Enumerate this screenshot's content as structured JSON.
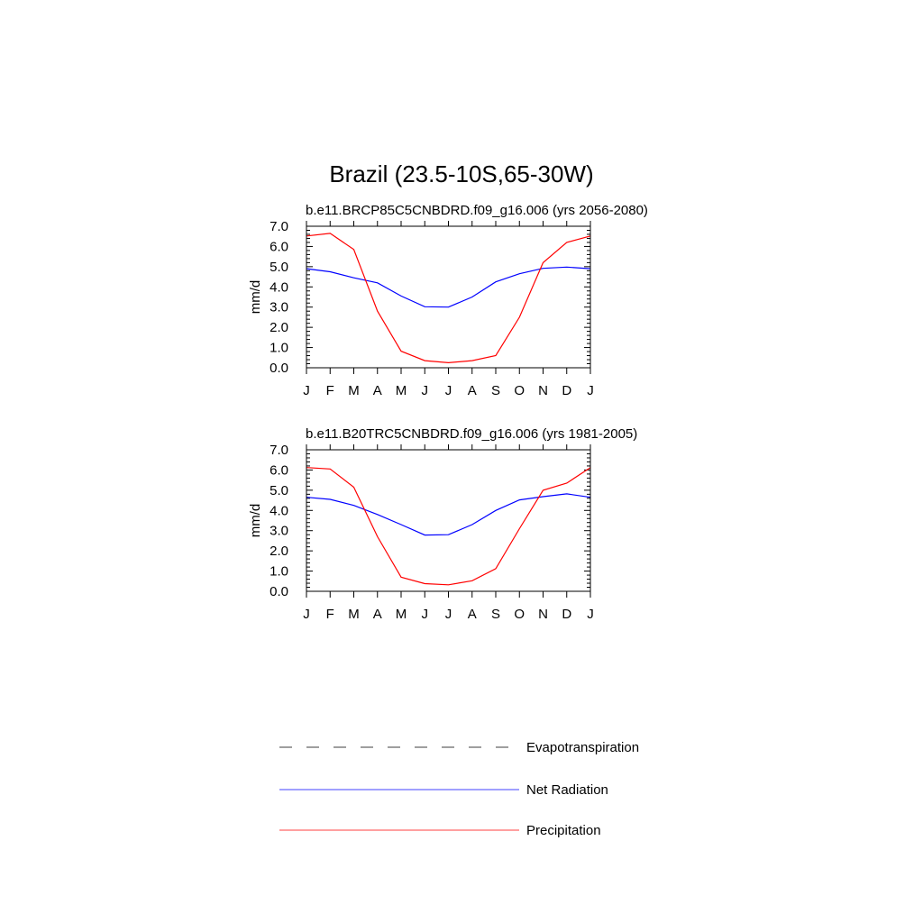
{
  "main_title": "Brazil (23.5-10S,65-30W)",
  "legend": [
    {
      "label": "Evapotranspiration",
      "color": "#000000",
      "style": "dashed"
    },
    {
      "label": "Net Radiation",
      "color": "#0000ff",
      "style": "solid"
    },
    {
      "label": "Precipitation",
      "color": "#ff0000",
      "style": "solid"
    }
  ],
  "chart_data": [
    {
      "type": "line",
      "title": "b.e11.BRCP85C5CNBDRD.f09_g16.006 (yrs 2056-2080)",
      "ylabel": "mm/d",
      "xlabel": "",
      "categories": [
        "J",
        "F",
        "M",
        "A",
        "M",
        "J",
        "J",
        "A",
        "S",
        "O",
        "N",
        "D",
        "J"
      ],
      "ylim": [
        0,
        7
      ],
      "yticks": [
        "0.0",
        "1.0",
        "2.0",
        "3.0",
        "4.0",
        "5.0",
        "6.0",
        "7.0"
      ],
      "series": [
        {
          "name": "Net Radiation",
          "color": "#0000ff",
          "values": [
            4.9,
            4.75,
            4.45,
            4.2,
            3.55,
            3.02,
            3.0,
            3.5,
            4.25,
            4.65,
            4.92,
            4.98,
            4.9
          ]
        },
        {
          "name": "Precipitation",
          "color": "#ff0000",
          "values": [
            6.52,
            6.65,
            5.85,
            2.8,
            0.82,
            0.35,
            0.25,
            0.35,
            0.6,
            2.5,
            5.2,
            6.2,
            6.52
          ]
        }
      ]
    },
    {
      "type": "line",
      "title": "b.e11.B20TRC5CNBDRD.f09_g16.006 (yrs 1981-2005)",
      "ylabel": "mm/d",
      "xlabel": "",
      "categories": [
        "J",
        "F",
        "M",
        "A",
        "M",
        "J",
        "J",
        "A",
        "S",
        "O",
        "N",
        "D",
        "J"
      ],
      "ylim": [
        0,
        7
      ],
      "yticks": [
        "0.0",
        "1.0",
        "2.0",
        "3.0",
        "4.0",
        "5.0",
        "6.0",
        "7.0"
      ],
      "series": [
        {
          "name": "Net Radiation",
          "color": "#0000ff",
          "values": [
            4.65,
            4.55,
            4.25,
            3.8,
            3.3,
            2.78,
            2.8,
            3.3,
            4.0,
            4.52,
            4.68,
            4.82,
            4.65
          ]
        },
        {
          "name": "Precipitation",
          "color": "#ff0000",
          "values": [
            6.12,
            6.05,
            5.15,
            2.7,
            0.7,
            0.38,
            0.32,
            0.52,
            1.12,
            3.1,
            5.0,
            5.35,
            6.12
          ]
        }
      ]
    }
  ]
}
